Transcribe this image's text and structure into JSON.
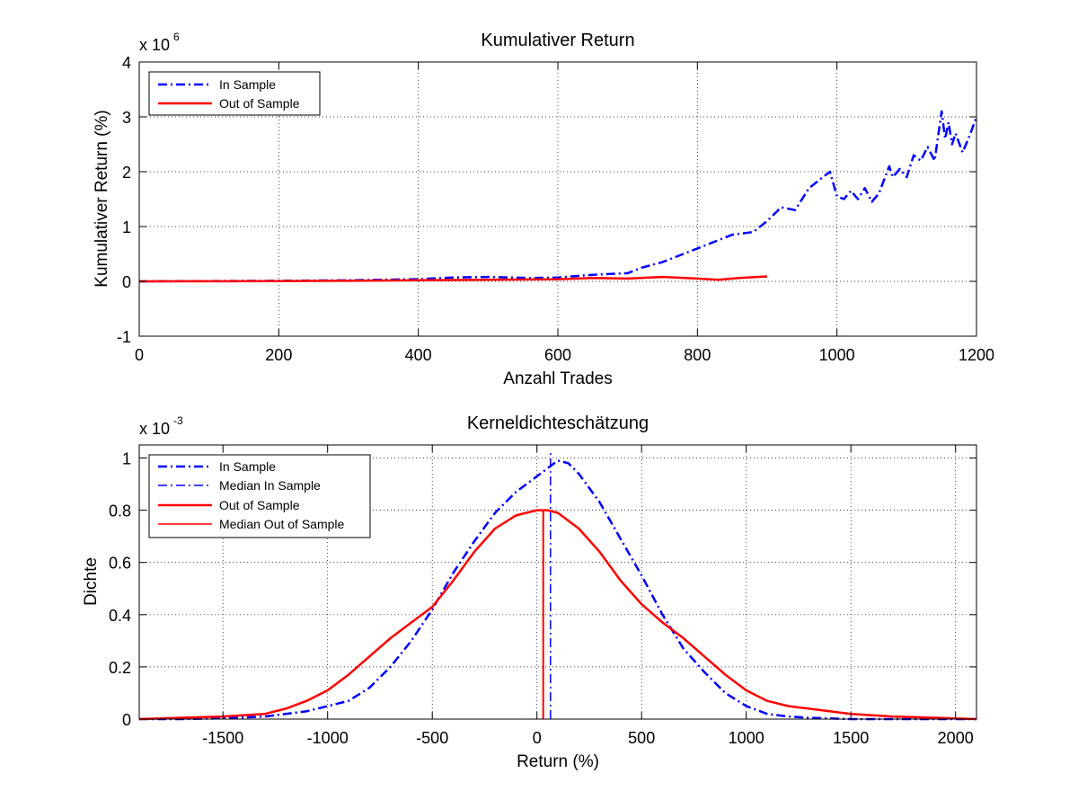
{
  "chart_data": [
    {
      "type": "line",
      "title": "Kumulativer Return",
      "xlabel": "Anzahl Trades",
      "ylabel": "Kumulativer Return (%)",
      "y_multiplier_base": "x 10",
      "y_multiplier_exponent": "6",
      "xlim": [
        0,
        1200
      ],
      "ylim": [
        -1,
        4
      ],
      "y_scale_factor": 1000000,
      "xticks": [
        0,
        200,
        400,
        600,
        800,
        1000,
        1200
      ],
      "xtick_labels": [
        "0",
        "200",
        "400",
        "600",
        "800",
        "1000",
        "1200"
      ],
      "yticks": [
        -1,
        0,
        1,
        2,
        3,
        4
      ],
      "ytick_labels": [
        "-1",
        "0",
        "1",
        "2",
        "3",
        "4"
      ],
      "grid": true,
      "legend_position": "top-left",
      "series": [
        {
          "name": "In Sample",
          "color": "#0000ff",
          "style": "dash-dot",
          "x": [
            0,
            100,
            200,
            300,
            400,
            450,
            500,
            560,
            600,
            650,
            700,
            720,
            750,
            800,
            850,
            880,
            900,
            920,
            940,
            960,
            980,
            990,
            1000,
            1010,
            1020,
            1030,
            1040,
            1050,
            1060,
            1075,
            1080,
            1090,
            1100,
            1110,
            1120,
            1130,
            1140,
            1150,
            1155,
            1160,
            1165,
            1170,
            1180,
            1190,
            1200
          ],
          "y": [
            0,
            0.005,
            0.01,
            0.02,
            0.04,
            0.07,
            0.08,
            0.06,
            0.07,
            0.12,
            0.15,
            0.25,
            0.35,
            0.6,
            0.85,
            0.9,
            1.1,
            1.35,
            1.3,
            1.7,
            1.9,
            2.0,
            1.55,
            1.5,
            1.65,
            1.5,
            1.7,
            1.45,
            1.6,
            2.1,
            1.9,
            2.05,
            1.9,
            2.3,
            2.2,
            2.45,
            2.2,
            3.1,
            2.6,
            2.9,
            2.5,
            2.7,
            2.35,
            2.65,
            3.0
          ]
        },
        {
          "name": "Out of Sample",
          "color": "#ff0000",
          "style": "solid",
          "x": [
            0,
            100,
            200,
            300,
            400,
            500,
            600,
            650,
            700,
            750,
            800,
            830,
            860,
            900
          ],
          "y": [
            0,
            0.002,
            0.005,
            0.01,
            0.02,
            0.03,
            0.04,
            0.06,
            0.05,
            0.08,
            0.05,
            0.03,
            0.06,
            0.09
          ]
        }
      ]
    },
    {
      "type": "line",
      "title": "Kerneldichteschätzung",
      "xlabel": "Return (%)",
      "ylabel": "Dichte",
      "y_multiplier_base": "x 10",
      "y_multiplier_exponent": "-3",
      "xlim": [
        -1900,
        2100
      ],
      "ylim": [
        0,
        1.05
      ],
      "y_scale_factor": 0.001,
      "xticks": [
        -1500,
        -1000,
        -500,
        0,
        500,
        1000,
        1500,
        2000
      ],
      "xtick_labels": [
        "-1500",
        "-1000",
        "-500",
        "0",
        "500",
        "1000",
        "1500",
        "2000"
      ],
      "yticks": [
        0,
        0.2,
        0.4,
        0.6,
        0.8,
        1
      ],
      "ytick_labels": [
        "0",
        "0.2",
        "0.4",
        "0.6",
        "0.8",
        "1"
      ],
      "grid": true,
      "legend_position": "top-left",
      "series": [
        {
          "name": "In Sample",
          "color": "#0000ff",
          "style": "dash-dot",
          "width": 2.5,
          "x": [
            -1900,
            -1700,
            -1500,
            -1300,
            -1100,
            -900,
            -800,
            -700,
            -600,
            -500,
            -400,
            -300,
            -200,
            -100,
            0,
            50,
            100,
            150,
            200,
            300,
            400,
            500,
            600,
            700,
            800,
            900,
            1000,
            1100,
            1200,
            1300,
            1500,
            1700,
            1900,
            2100
          ],
          "y": [
            0,
            0,
            0.003,
            0.01,
            0.03,
            0.07,
            0.12,
            0.2,
            0.3,
            0.42,
            0.56,
            0.68,
            0.79,
            0.87,
            0.93,
            0.96,
            0.99,
            0.98,
            0.94,
            0.83,
            0.69,
            0.55,
            0.4,
            0.27,
            0.18,
            0.1,
            0.05,
            0.02,
            0.01,
            0.005,
            0,
            0,
            0,
            0
          ]
        },
        {
          "name": "Median In Sample",
          "color": "#0000ff",
          "style": "dash-dot",
          "width": 1.5,
          "x": [
            65,
            65
          ],
          "y": [
            0,
            1.02
          ]
        },
        {
          "name": "Out of Sample",
          "color": "#ff0000",
          "style": "solid",
          "width": 2.5,
          "x": [
            -1900,
            -1700,
            -1500,
            -1300,
            -1200,
            -1100,
            -1000,
            -900,
            -800,
            -700,
            -600,
            -500,
            -400,
            -300,
            -200,
            -100,
            0,
            50,
            100,
            200,
            300,
            400,
            500,
            600,
            700,
            800,
            900,
            1000,
            1100,
            1200,
            1300,
            1500,
            1700,
            1900,
            2100
          ],
          "y": [
            0,
            0.005,
            0.01,
            0.02,
            0.04,
            0.07,
            0.11,
            0.17,
            0.24,
            0.31,
            0.37,
            0.43,
            0.53,
            0.64,
            0.73,
            0.78,
            0.8,
            0.8,
            0.79,
            0.73,
            0.64,
            0.53,
            0.44,
            0.37,
            0.31,
            0.24,
            0.17,
            0.11,
            0.07,
            0.05,
            0.04,
            0.02,
            0.01,
            0.005,
            0
          ]
        },
        {
          "name": "Median Out of Sample",
          "color": "#ff0000",
          "style": "solid",
          "width": 2,
          "x": [
            30,
            30
          ],
          "y": [
            0,
            0.8
          ]
        }
      ]
    }
  ]
}
